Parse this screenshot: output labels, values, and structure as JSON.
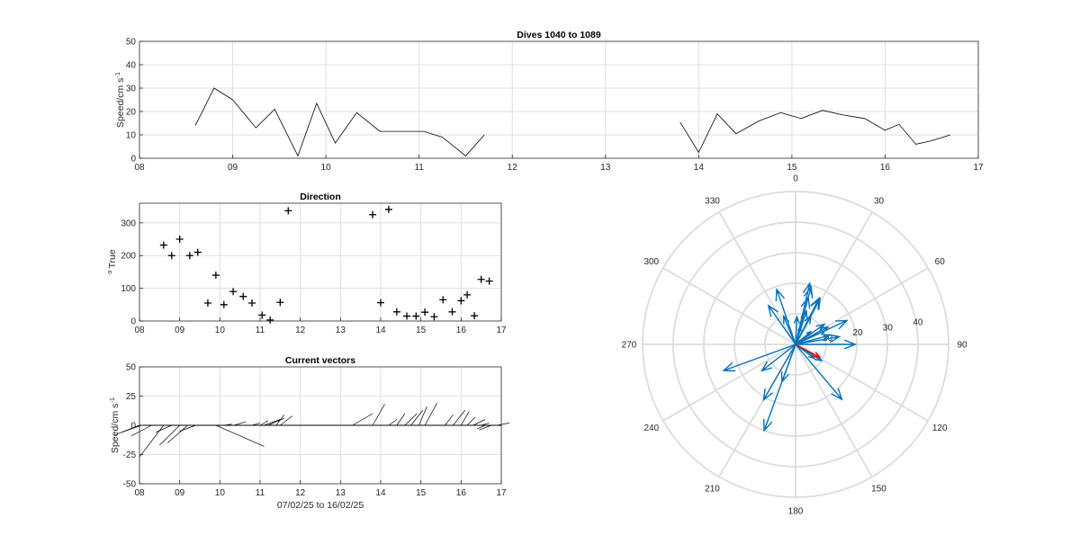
{
  "chart_data": [
    {
      "id": "speed",
      "type": "line",
      "title": "Dives 1040 to 1089",
      "ylabel": "Speed/cm s",
      "ylabel_superscript": "-1",
      "xlim": [
        8,
        17
      ],
      "ylim": [
        0,
        50
      ],
      "xticks": [
        "08",
        "09",
        "10",
        "11",
        "12",
        "13",
        "14",
        "15",
        "16",
        "17"
      ],
      "yticks": [
        0,
        10,
        20,
        30,
        40,
        50
      ],
      "grid": true,
      "color": "#000000",
      "segments": [
        [
          [
            8.6,
            14
          ],
          [
            8.8,
            30
          ],
          [
            9.0,
            25
          ],
          [
            9.25,
            13
          ],
          [
            9.45,
            21
          ],
          [
            9.7,
            1
          ],
          [
            9.9,
            23.5
          ],
          [
            10.1,
            6.5
          ],
          [
            10.33,
            19.5
          ],
          [
            10.58,
            11.5
          ],
          [
            10.8,
            11.5
          ],
          [
            11.05,
            11.5
          ],
          [
            11.25,
            9
          ],
          [
            11.5,
            1
          ],
          [
            11.7,
            10
          ]
        ],
        [
          [
            13.8,
            15.5
          ],
          [
            14.0,
            2.5
          ],
          [
            14.2,
            19
          ],
          [
            14.4,
            10.5
          ],
          [
            14.65,
            16
          ],
          [
            14.88,
            19.5
          ],
          [
            15.1,
            17
          ],
          [
            15.33,
            20.5
          ],
          [
            15.55,
            18.5
          ],
          [
            15.78,
            17
          ],
          [
            16.0,
            12
          ],
          [
            16.15,
            14.5
          ],
          [
            16.33,
            6
          ],
          [
            16.5,
            7.5
          ],
          [
            16.7,
            10
          ]
        ]
      ]
    },
    {
      "id": "direction",
      "type": "scatter",
      "title": "Direction",
      "ylabel": "True",
      "ylabel_prefix": "o",
      "xlim": [
        8,
        17
      ],
      "ylim": [
        0,
        360
      ],
      "xticks": [
        "08",
        "09",
        "10",
        "11",
        "12",
        "13",
        "14",
        "15",
        "16",
        "17"
      ],
      "yticks": [
        0,
        100,
        200,
        300
      ],
      "grid": true,
      "marker": "+",
      "points": [
        [
          8.6,
          232
        ],
        [
          8.8,
          200
        ],
        [
          9.0,
          250
        ],
        [
          9.25,
          200
        ],
        [
          9.45,
          210
        ],
        [
          9.7,
          55
        ],
        [
          9.9,
          140
        ],
        [
          10.1,
          50
        ],
        [
          10.33,
          90
        ],
        [
          10.58,
          75
        ],
        [
          10.8,
          55
        ],
        [
          11.05,
          18
        ],
        [
          11.25,
          3
        ],
        [
          11.5,
          57
        ],
        [
          11.7,
          337
        ],
        [
          13.8,
          325
        ],
        [
          14.0,
          56
        ],
        [
          14.2,
          341
        ],
        [
          14.4,
          28
        ],
        [
          14.65,
          15
        ],
        [
          14.88,
          15
        ],
        [
          15.1,
          27
        ],
        [
          15.33,
          13
        ],
        [
          15.55,
          65
        ],
        [
          15.78,
          28
        ],
        [
          16.0,
          62
        ],
        [
          16.15,
          80
        ],
        [
          16.33,
          16
        ],
        [
          16.5,
          127
        ],
        [
          16.7,
          122
        ]
      ]
    },
    {
      "id": "vectors",
      "type": "line",
      "title": "Current vectors",
      "ylabel": "Speed/cm s",
      "ylabel_superscript": "-1",
      "xlabel": "07/02/25 to 16/02/25",
      "xlim": [
        8,
        17
      ],
      "ylim": [
        -50,
        50
      ],
      "xticks": [
        "08",
        "09",
        "10",
        "11",
        "12",
        "13",
        "14",
        "15",
        "16",
        "17"
      ],
      "yticks": [
        -50,
        -25,
        0,
        25,
        50
      ],
      "grid": true,
      "sticks": [
        [
          8.0,
          -0.6,
          -8
        ],
        [
          8.05,
          -0.5,
          -6
        ],
        [
          8.3,
          -0.5,
          -9
        ],
        [
          8.6,
          -0.6,
          -27
        ],
        [
          8.8,
          -0.4,
          -6
        ],
        [
          9.0,
          -0.5,
          -17
        ],
        [
          9.2,
          -0.5,
          -15
        ],
        [
          9.4,
          -0.4,
          -5
        ],
        [
          9.7,
          0.2,
          0
        ],
        [
          9.9,
          1.2,
          -18
        ],
        [
          10.1,
          0.2,
          1
        ],
        [
          10.35,
          0.3,
          3
        ],
        [
          10.8,
          0.2,
          2
        ],
        [
          11.0,
          0.2,
          4
        ],
        [
          11.1,
          0.4,
          5
        ],
        [
          11.2,
          0.4,
          6
        ],
        [
          11.4,
          0.2,
          9
        ],
        [
          11.5,
          0.3,
          8
        ],
        [
          13.3,
          0.5,
          10
        ],
        [
          13.8,
          0.3,
          18
        ],
        [
          14.2,
          0.2,
          5
        ],
        [
          14.4,
          0.2,
          10
        ],
        [
          14.6,
          0.3,
          10
        ],
        [
          14.75,
          0.3,
          13
        ],
        [
          14.95,
          0.2,
          16
        ],
        [
          15.1,
          0.3,
          19
        ],
        [
          15.6,
          0.2,
          9
        ],
        [
          15.8,
          0.3,
          13
        ],
        [
          16.0,
          0.2,
          12
        ],
        [
          16.15,
          0.2,
          7
        ],
        [
          16.3,
          0.3,
          5
        ],
        [
          16.5,
          0.2,
          2
        ],
        [
          16.6,
          -0.2,
          -3
        ],
        [
          16.75,
          -0.3,
          -4
        ],
        [
          16.9,
          0.3,
          2
        ]
      ]
    },
    {
      "id": "compass",
      "type": "compass",
      "rlim": [
        0,
        50
      ],
      "rticks": [
        10,
        20,
        30,
        40
      ],
      "angle_labels": [
        "0",
        "30",
        "60",
        "90",
        "120",
        "150",
        "180",
        "210",
        "240",
        "270",
        "300",
        "330"
      ],
      "vector_color": "#0072BD",
      "mean_color": "#FF0000",
      "vectors": [
        [
          232,
          14
        ],
        [
          200,
          30
        ],
        [
          250,
          25
        ],
        [
          200,
          13
        ],
        [
          210,
          21
        ],
        [
          55,
          1
        ],
        [
          140,
          23.5
        ],
        [
          50,
          6.5
        ],
        [
          90,
          19.5
        ],
        [
          75,
          11.5
        ],
        [
          55,
          11.5
        ],
        [
          18,
          11.5
        ],
        [
          3,
          9
        ],
        [
          57,
          1
        ],
        [
          337,
          10
        ],
        [
          325,
          15.5
        ],
        [
          56,
          2.5
        ],
        [
          341,
          19
        ],
        [
          28,
          10.5
        ],
        [
          15,
          16
        ],
        [
          15,
          19.5
        ],
        [
          27,
          17
        ],
        [
          13,
          20.5
        ],
        [
          65,
          18.5
        ],
        [
          28,
          17
        ],
        [
          62,
          12
        ],
        [
          80,
          14.5
        ],
        [
          16,
          6
        ],
        [
          127,
          7.5
        ],
        [
          122,
          10
        ]
      ],
      "mean_vector": [
        118,
        9
      ]
    }
  ]
}
